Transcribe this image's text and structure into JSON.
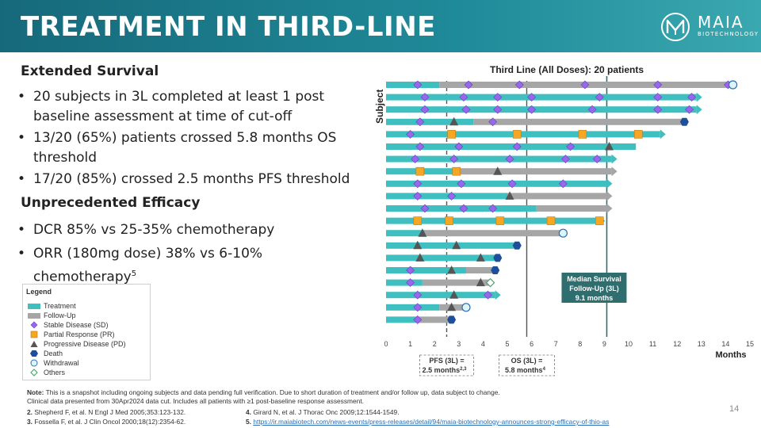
{
  "header": {
    "title": "TREATMENT IN THIRD-LINE",
    "logo_name": "MAIA",
    "logo_sub": "BIOTECHNOLOGY"
  },
  "left": {
    "heading1": "Extended Survival",
    "bullets1": [
      "20 subjects in 3L completed at least 1 post baseline assessment at time of cut-off",
      "13/20 (65%) patients crossed 5.8 months OS threshold",
      "17/20 (85%) crossed 2.5 months PFS threshold"
    ],
    "heading2": "Unprecedented Efficacy",
    "bullet_dcr": "DCR 85% vs 25-35% chemotherapy",
    "bullet_orr": "ORR (180mg dose) 38% vs 6-10% chemotherapy",
    "bullet_orr_sup": "5"
  },
  "legend": {
    "title": "Legend",
    "items": [
      "Treatment",
      "Follow-Up",
      "Stable Disease (SD)",
      "Partial Response (PR)",
      "Progressive Disease (PD)",
      "Death",
      "Withdrawal",
      "Others"
    ]
  },
  "colors": {
    "treatment": "#3fbfbf",
    "followup": "#a6a6a6",
    "sd": "#9966ee",
    "pr": "#f5a623",
    "pd": "#555555",
    "death": "#1f4e9a",
    "median_line": "#2f6e6e",
    "header": "#1a7a8a"
  },
  "chart_data": {
    "type": "swimmer",
    "title": "Third Line (All Doses): 20 patients",
    "xlabel": "Months",
    "ylabel": "Subject",
    "xlim": [
      0,
      15
    ],
    "xticks": [
      "0",
      "1",
      "2",
      "3",
      "4",
      "5",
      "6",
      "7",
      "8",
      "9",
      "10",
      "11",
      "12",
      "13",
      "14",
      "15"
    ],
    "pfs_threshold": 2.5,
    "os_threshold": 5.8,
    "median_followup": 9.1,
    "median_label": [
      "Median Survival",
      "Follow-Up (3L)",
      "9.1 months"
    ],
    "pfs_label": "PFS (3L) =",
    "pfs_value": "2.5 months",
    "pfs_sup": "2,3",
    "os_label": "OS (3L) =",
    "os_value": "5.8 months",
    "os_sup": "4",
    "subjects": [
      {
        "treat": 2.2,
        "end": 14.3,
        "arrow": false,
        "endmark": "withdrawal",
        "sd": [
          1.3,
          3.4,
          5.5,
          8.2,
          11.2,
          14.1
        ],
        "pr": [],
        "pd": []
      },
      {
        "treat": 12.8,
        "end": 12.8,
        "arrow": true,
        "endmark": "",
        "sd": [
          1.6,
          3.2,
          4.6,
          6.0,
          8.8,
          11.2,
          12.6
        ],
        "pr": [],
        "pd": []
      },
      {
        "treat": 12.8,
        "end": 12.8,
        "arrow": true,
        "endmark": "",
        "sd": [
          1.6,
          3.3,
          4.6,
          6.0,
          8.5,
          11.2,
          12.5
        ],
        "pr": [],
        "pd": []
      },
      {
        "treat": 3.6,
        "end": 12.3,
        "arrow": false,
        "endmark": "death",
        "sd": [
          1.4,
          4.4
        ],
        "pr": [],
        "pd": [
          2.8
        ]
      },
      {
        "treat": 11.3,
        "end": 11.3,
        "arrow": true,
        "endmark": "",
        "sd": [
          1.0
        ],
        "pr": [
          2.7,
          5.4,
          8.1,
          10.4
        ],
        "pd": []
      },
      {
        "treat": 10.3,
        "end": 10.3,
        "arrow": false,
        "endmark": "",
        "sd": [
          1.4,
          3.0,
          5.4,
          7.6
        ],
        "pr": [],
        "pd": [
          9.2
        ]
      },
      {
        "treat": 9.3,
        "end": 9.3,
        "arrow": true,
        "endmark": "",
        "sd": [
          1.2,
          2.8,
          5.1,
          7.4,
          8.7
        ],
        "pr": [],
        "pd": []
      },
      {
        "treat": 2.9,
        "end": 9.3,
        "arrow": true,
        "endmark": "",
        "sd": [],
        "pr": [
          1.4,
          2.9
        ],
        "pd": [
          4.6
        ]
      },
      {
        "treat": 9.1,
        "end": 9.1,
        "arrow": true,
        "endmark": "",
        "sd": [
          1.3,
          3.1,
          5.2,
          7.3
        ],
        "pr": [],
        "pd": []
      },
      {
        "treat": 5.0,
        "end": 9.1,
        "arrow": true,
        "endmark": "",
        "sd": [
          1.3,
          2.7
        ],
        "pr": [],
        "pd": [
          5.1
        ]
      },
      {
        "treat": 6.2,
        "end": 9.1,
        "arrow": true,
        "endmark": "",
        "sd": [
          1.6,
          3.2,
          4.4
        ],
        "pr": [],
        "pd": []
      },
      {
        "treat": 8.8,
        "end": 8.8,
        "arrow": true,
        "endmark": "",
        "sd": [],
        "pr": [
          1.3,
          2.6,
          4.7,
          6.8,
          8.8
        ],
        "pd": []
      },
      {
        "treat": 1.6,
        "end": 7.3,
        "arrow": false,
        "endmark": "withdrawal",
        "sd": [],
        "pr": [],
        "pd": [
          1.5
        ]
      },
      {
        "treat": 5.4,
        "end": 5.4,
        "arrow": false,
        "endmark": "death",
        "sd": [],
        "pr": [],
        "pd": [
          1.3,
          2.9
        ]
      },
      {
        "treat": 4.6,
        "end": 4.6,
        "arrow": false,
        "endmark": "death",
        "sd": [],
        "pr": [],
        "pd": [
          1.4,
          3.9
        ]
      },
      {
        "treat": 3.3,
        "end": 4.5,
        "arrow": false,
        "endmark": "death",
        "sd": [
          1.0
        ],
        "pr": [],
        "pd": [
          2.7
        ]
      },
      {
        "treat": 1.5,
        "end": 4.3,
        "arrow": false,
        "endmark": "other",
        "sd": [
          1.0
        ],
        "pr": [],
        "pd": [
          3.9
        ]
      },
      {
        "treat": 4.5,
        "end": 4.5,
        "arrow": true,
        "endmark": "",
        "sd": [
          1.3,
          4.2
        ],
        "pr": [],
        "pd": [
          2.8
        ]
      },
      {
        "treat": 2.2,
        "end": 3.3,
        "arrow": false,
        "endmark": "withdrawal",
        "sd": [
          1.3
        ],
        "pr": [],
        "pd": [
          2.7
        ]
      },
      {
        "treat": 1.4,
        "end": 2.7,
        "arrow": false,
        "endmark": "death",
        "sd": [
          1.3
        ],
        "pr": [],
        "pd": []
      }
    ]
  },
  "note": {
    "label": "Note:",
    "line1": "This is a snapshot including ongoing subjects and data pending full verification. Due to short duration of treatment and/or follow up, data subject to change.",
    "line2": "Clinical data presented from 30Apr2024 data cut. Includes all patients with ≥1 post-baseline response assessment."
  },
  "refs": [
    {
      "num": "2.",
      "text": "Shepherd F, et al. N Engl J Med 2005;353:123-132."
    },
    {
      "num": "3.",
      "text": "Fossella F, et al. J Clin Oncol 2000;18(12):2354-62."
    },
    {
      "num": "4.",
      "text": "Girard N, et al. J Thorac Onc 2009;12:1544-1549."
    },
    {
      "num": "5.",
      "text": "https://ir.maiabiotech.com/news-events/press-releases/detail/94/maia-biotechnology-announces-strong-efficacy-of-thio-as"
    }
  ],
  "page_number": "14"
}
